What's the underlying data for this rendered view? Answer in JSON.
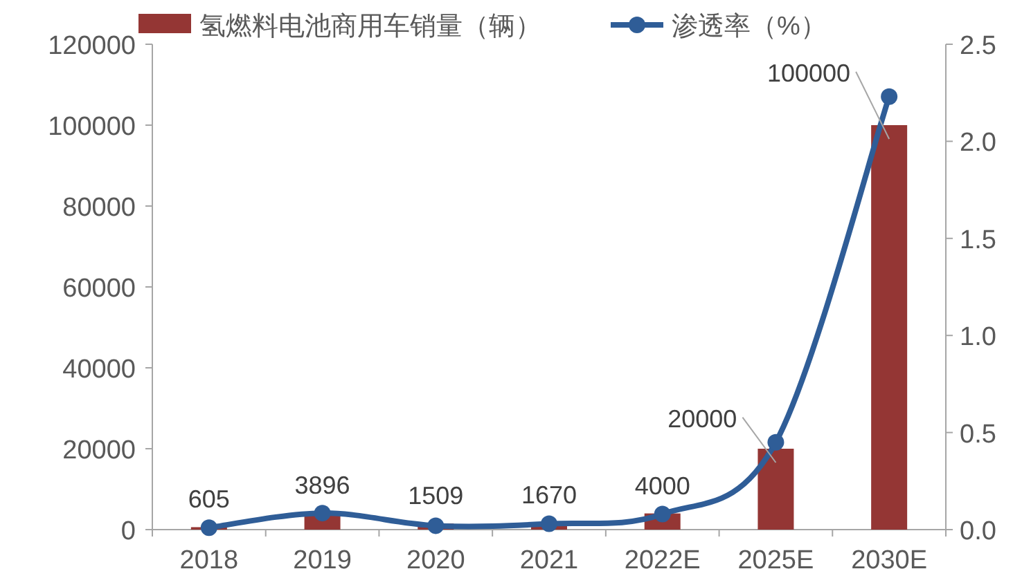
{
  "chart_data": {
    "type": "bar",
    "categories": [
      "2018",
      "2019",
      "2020",
      "2021",
      "2022E",
      "2025E",
      "2030E"
    ],
    "series": [
      {
        "name": "氢燃料电池商用车销量（辆）",
        "color": "#943634",
        "values": [
          605,
          3896,
          1509,
          1670,
          4000,
          20000,
          100000
        ],
        "value_labels": [
          "605",
          "3896",
          "1509",
          "1670",
          "4000",
          "20000",
          "100000"
        ]
      },
      {
        "name": "渗透率（%）",
        "type": "line",
        "axis": "y2",
        "color": "#2f5d97",
        "marker": "circle",
        "values": [
          0.01,
          0.085,
          0.02,
          0.03,
          0.08,
          0.45,
          2.23
        ]
      }
    ],
    "legend": "top",
    "ylim": [
      0,
      120000
    ],
    "yticks": [
      0,
      20000,
      40000,
      60000,
      80000,
      100000,
      120000
    ],
    "y2lim": [
      0,
      2.5
    ],
    "y2ticks": [
      {
        "value": 0,
        "label": "0.0"
      },
      {
        "value": 0.5,
        "label": "0.5"
      },
      {
        "value": 1,
        "label": "1.0"
      },
      {
        "value": 1.5,
        "label": "1.5"
      },
      {
        "value": 2,
        "label": "2.0"
      },
      {
        "value": 2.5,
        "label": "2.5"
      }
    ]
  }
}
